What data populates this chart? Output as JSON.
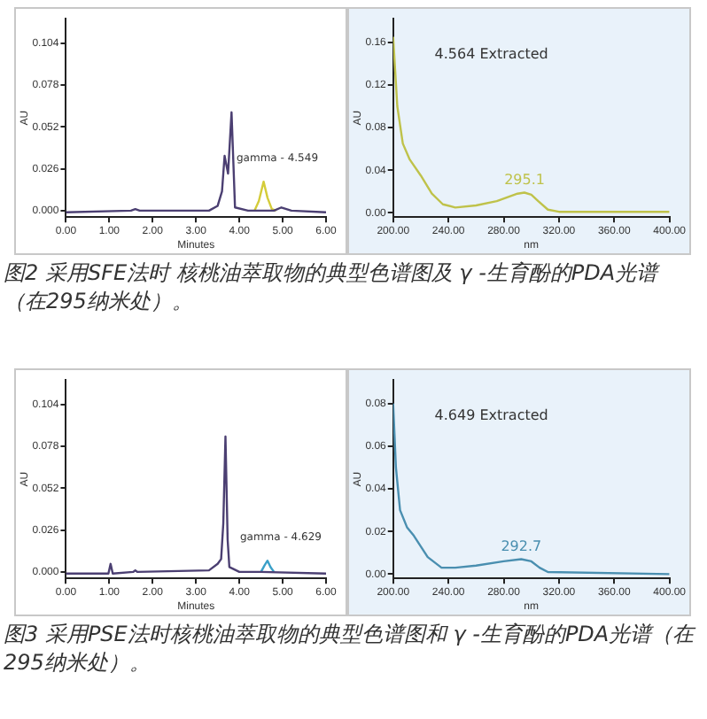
{
  "chart_data": [
    {
      "type": "line",
      "xlabel": "Minutes",
      "ylabel": "AU",
      "xlim": [
        0,
        6
      ],
      "ylim": [
        -0.004,
        0.119
      ],
      "xticks": [
        {
          "value": 0,
          "label": "0.00"
        },
        {
          "value": 1,
          "label": "1.00"
        },
        {
          "value": 2,
          "label": "2.00"
        },
        {
          "value": 3,
          "label": "3.00"
        },
        {
          "value": 4,
          "label": "4.00"
        },
        {
          "value": 5,
          "label": "5.00"
        },
        {
          "value": 6,
          "label": "6.00"
        }
      ],
      "yticks": [
        {
          "value": 0,
          "label": "0.000"
        },
        {
          "value": 0.026,
          "label": "0.026"
        },
        {
          "value": 0.052,
          "label": "0.052"
        },
        {
          "value": 0.078,
          "label": "0.078"
        },
        {
          "value": 0.104,
          "label": "0.104"
        }
      ],
      "series": [
        {
          "color": "#4b3f72",
          "x": [
            0,
            1.5,
            1.6,
            1.7,
            3.3,
            3.5,
            3.6,
            3.66,
            3.74,
            3.82,
            3.9,
            4.2,
            4.8,
            4.97,
            5.2,
            6
          ],
          "values": [
            -0.001,
            0,
            0.001,
            0,
            0,
            0.003,
            0.012,
            0.034,
            0.023,
            0.061,
            0.002,
            0,
            0,
            0.002,
            0,
            -0.001
          ]
        },
        {
          "color": "#d4cc3a",
          "x": [
            4.35,
            4.45,
            4.56,
            4.65,
            4.75,
            4.85
          ],
          "values": [
            0,
            0.006,
            0.018,
            0.008,
            0.001,
            0
          ]
        }
      ],
      "annotations": [
        {
          "text": "gamma - 4.549",
          "x": 4.549,
          "y": 0.018
        },
        "图2 采用SFE法时 核桃油萃取物的典型色谱图及 γ -生育酚的PDA光谱（在295纳米处）。"
      ]
    },
    {
      "type": "line",
      "title": "4.564 Extracted",
      "xlabel": "nm",
      "ylabel": "AU",
      "xlim": [
        200,
        400
      ],
      "ylim": [
        -0.004,
        0.182
      ],
      "xticks": [
        {
          "value": 200,
          "label": "200.00"
        },
        {
          "value": 240,
          "label": "240.00"
        },
        {
          "value": 280,
          "label": "280.00"
        },
        {
          "value": 320,
          "label": "320.00"
        },
        {
          "value": 360,
          "label": "360.00"
        },
        {
          "value": 400,
          "label": "400.00"
        }
      ],
      "yticks": [
        {
          "value": 0,
          "label": "0.00"
        },
        {
          "value": 0.04,
          "label": "0.04"
        },
        {
          "value": 0.08,
          "label": "0.08"
        },
        {
          "value": 0.12,
          "label": "0.12"
        },
        {
          "value": 0.16,
          "label": "0.16"
        }
      ],
      "series": [
        {
          "color": "#bfc24a",
          "x": [
            200,
            203,
            207,
            212,
            220,
            228,
            236,
            245,
            260,
            275,
            290,
            295,
            300,
            305,
            312,
            320,
            400
          ],
          "values": [
            0.165,
            0.1,
            0.065,
            0.05,
            0.035,
            0.018,
            0.008,
            0.005,
            0.007,
            0.011,
            0.018,
            0.019,
            0.017,
            0.011,
            0.003,
            0.001,
            0.001
          ]
        }
      ],
      "annotations": [
        {
          "text": "295.1",
          "x": 295.1,
          "y": 0.019
        }
      ]
    },
    {
      "type": "line",
      "xlabel": "Minutes",
      "ylabel": "AU",
      "xlim": [
        0,
        6
      ],
      "ylim": [
        -0.004,
        0.119
      ],
      "xticks": [
        {
          "value": 0,
          "label": "0.00"
        },
        {
          "value": 1,
          "label": "1.00"
        },
        {
          "value": 2,
          "label": "2.00"
        },
        {
          "value": 3,
          "label": "3.00"
        },
        {
          "value": 4,
          "label": "4.00"
        },
        {
          "value": 5,
          "label": "5.00"
        },
        {
          "value": 6,
          "label": "6.00"
        }
      ],
      "yticks": [
        {
          "value": 0,
          "label": "0.000"
        },
        {
          "value": 0.026,
          "label": "0.026"
        },
        {
          "value": 0.052,
          "label": "0.052"
        },
        {
          "value": 0.078,
          "label": "0.078"
        },
        {
          "value": 0.104,
          "label": "0.104"
        }
      ],
      "series": [
        {
          "color": "#4b3f72",
          "x": [
            0,
            0.98,
            1.03,
            1.08,
            1.55,
            1.6,
            1.65,
            3.3,
            3.5,
            3.58,
            3.63,
            3.68,
            3.73,
            3.77,
            4.0,
            4.5,
            6
          ],
          "values": [
            -0.001,
            -0.001,
            0.005,
            -0.001,
            0,
            0.001,
            0,
            0.001,
            0.005,
            0.008,
            0.03,
            0.084,
            0.02,
            0.003,
            0,
            0,
            -0.001
          ]
        },
        {
          "color": "#3aa0c8",
          "x": [
            4.5,
            4.58,
            4.65,
            4.72,
            4.8
          ],
          "values": [
            0,
            0.004,
            0.007,
            0.003,
            0
          ]
        }
      ],
      "annotations": [
        {
          "text": "gamma - 4.629",
          "x": 4.629,
          "y": 0.007
        },
        "图3 采用PSE法时核桃油萃取物的典型色谱图和 γ -生育酚的PDA光谱（在295纳米处）。"
      ]
    },
    {
      "type": "line",
      "title": "4.649 Extracted",
      "xlabel": "nm",
      "ylabel": "AU",
      "xlim": [
        200,
        400
      ],
      "ylim": [
        -0.002,
        0.091
      ],
      "xticks": [
        {
          "value": 200,
          "label": "200.00"
        },
        {
          "value": 240,
          "label": "240.00"
        },
        {
          "value": 280,
          "label": "280.00"
        },
        {
          "value": 320,
          "label": "320.00"
        },
        {
          "value": 360,
          "label": "360.00"
        },
        {
          "value": 400,
          "label": "400.00"
        }
      ],
      "yticks": [
        {
          "value": 0,
          "label": "0.00"
        },
        {
          "value": 0.02,
          "label": "0.02"
        },
        {
          "value": 0.04,
          "label": "0.04"
        },
        {
          "value": 0.06,
          "label": "0.06"
        },
        {
          "value": 0.08,
          "label": "0.08"
        }
      ],
      "series": [
        {
          "color": "#4a8fb0",
          "x": [
            200,
            202,
            205,
            210,
            215,
            225,
            235,
            245,
            260,
            280,
            292.7,
            300,
            306,
            312,
            400
          ],
          "values": [
            0.08,
            0.05,
            0.03,
            0.022,
            0.018,
            0.008,
            0.003,
            0.003,
            0.004,
            0.006,
            0.007,
            0.006,
            0.003,
            0.001,
            0
          ]
        }
      ],
      "annotations": [
        {
          "text": "292.7",
          "x": 292.7,
          "y": 0.007
        }
      ]
    }
  ]
}
